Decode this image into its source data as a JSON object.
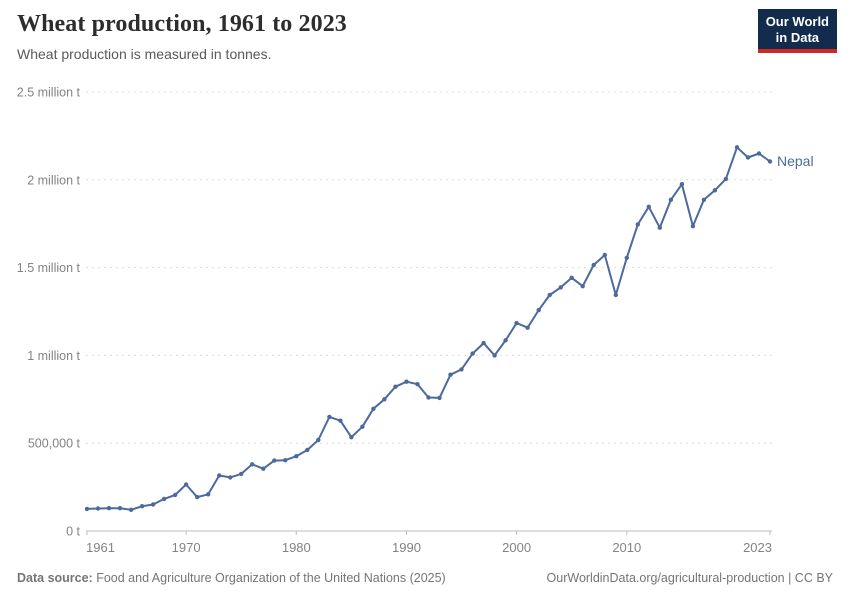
{
  "header": {
    "title": "Wheat production, 1961 to 2023",
    "subtitle": "Wheat production is measured in tonnes."
  },
  "logo": {
    "line1": "Our World",
    "line2": "in Data",
    "navy": "#132c4d",
    "red": "#cf2722"
  },
  "footer": {
    "datasource_label": "Data source:",
    "datasource_text": " Food and Agriculture Organization of the United Nations (2025)",
    "attribution": "OurWorldinData.org/agricultural-production | CC BY"
  },
  "chart_data": {
    "type": "line",
    "title": "Wheat production, 1961 to 2023",
    "subtitle": "Wheat production is measured in tonnes.",
    "unit": "tonnes",
    "grid": "horizontal-dashed",
    "legend": "end-of-line-label",
    "xlim": [
      1961,
      2023
    ],
    "ylim": [
      0,
      2500000
    ],
    "xticks": [
      1961,
      1970,
      1980,
      1990,
      2000,
      2010,
      2023
    ],
    "yticks": [
      {
        "value": 0,
        "label": "0 t"
      },
      {
        "value": 500000,
        "label": "500,000 t"
      },
      {
        "value": 1000000,
        "label": "1 million t"
      },
      {
        "value": 1500000,
        "label": "1.5 million t"
      },
      {
        "value": 2000000,
        "label": "2 million t"
      },
      {
        "value": 2500000,
        "label": "2.5 million t"
      }
    ],
    "years": [
      1961,
      1962,
      1963,
      1964,
      1965,
      1966,
      1967,
      1968,
      1969,
      1970,
      1971,
      1972,
      1973,
      1974,
      1975,
      1976,
      1977,
      1978,
      1979,
      1980,
      1981,
      1982,
      1983,
      1984,
      1985,
      1986,
      1987,
      1988,
      1989,
      1990,
      1991,
      1992,
      1993,
      1994,
      1995,
      1996,
      1997,
      1998,
      1999,
      2000,
      2001,
      2002,
      2003,
      2004,
      2005,
      2006,
      2007,
      2008,
      2009,
      2010,
      2011,
      2012,
      2013,
      2014,
      2015,
      2016,
      2017,
      2018,
      2019,
      2020,
      2021,
      2022,
      2023
    ],
    "series": [
      {
        "name": "Nepal",
        "color": "#4c6a9c",
        "values": [
          126000,
          128000,
          130000,
          130000,
          121000,
          141000,
          151000,
          183000,
          205000,
          265000,
          193000,
          209000,
          316000,
          305000,
          325000,
          380000,
          355000,
          401000,
          403000,
          426000,
          461000,
          518000,
          650000,
          628000,
          534000,
          594000,
          696000,
          750000,
          822000,
          850000,
          836000,
          760000,
          758000,
          890000,
          920000,
          1010000,
          1070000,
          1000000,
          1086000,
          1184000,
          1158000,
          1258000,
          1344000,
          1387000,
          1442000,
          1394000,
          1515000,
          1572000,
          1344000,
          1556000,
          1746000,
          1846000,
          1727000,
          1886000,
          1975000,
          1736000,
          1886000,
          1940000,
          2005000,
          2185000,
          2127000,
          2150000,
          2104000
        ]
      }
    ]
  }
}
